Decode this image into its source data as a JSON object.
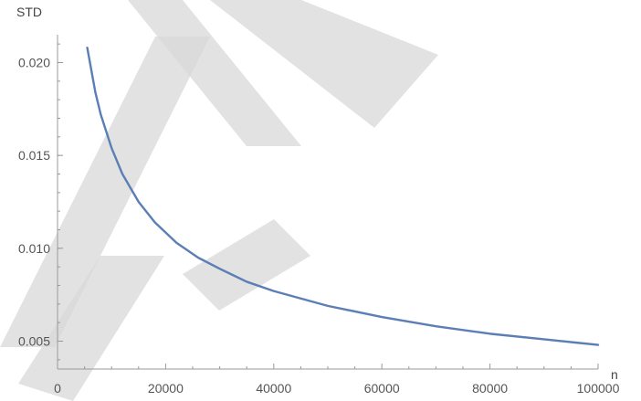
{
  "chart_data": {
    "type": "line",
    "title": "",
    "xlabel": "n",
    "ylabel": "STD",
    "xlim": [
      0,
      100000
    ],
    "ylim": [
      0.0035,
      0.0215
    ],
    "x_ticks": [
      0,
      20000,
      40000,
      60000,
      80000,
      100000
    ],
    "x_tick_labels": [
      "0",
      "20000",
      "40000",
      "60000",
      "80000",
      "100000"
    ],
    "y_ticks": [
      0.005,
      0.01,
      0.015,
      0.02
    ],
    "y_tick_labels": [
      "0.005",
      "0.010",
      "0.015",
      "0.020"
    ],
    "grid": false,
    "series": [
      {
        "color": "#5b7fb5",
        "x": [
          5500,
          7000,
          8000,
          10000,
          12000,
          15000,
          18000,
          22000,
          26000,
          30000,
          35000,
          40000,
          50000,
          60000,
          70000,
          80000,
          90000,
          100000
        ],
        "y": [
          0.0208,
          0.0184,
          0.0172,
          0.0154,
          0.014,
          0.0125,
          0.0114,
          0.0103,
          0.0095,
          0.0089,
          0.0082,
          0.0077,
          0.0069,
          0.0063,
          0.0058,
          0.0054,
          0.0051,
          0.0048
        ]
      }
    ]
  }
}
